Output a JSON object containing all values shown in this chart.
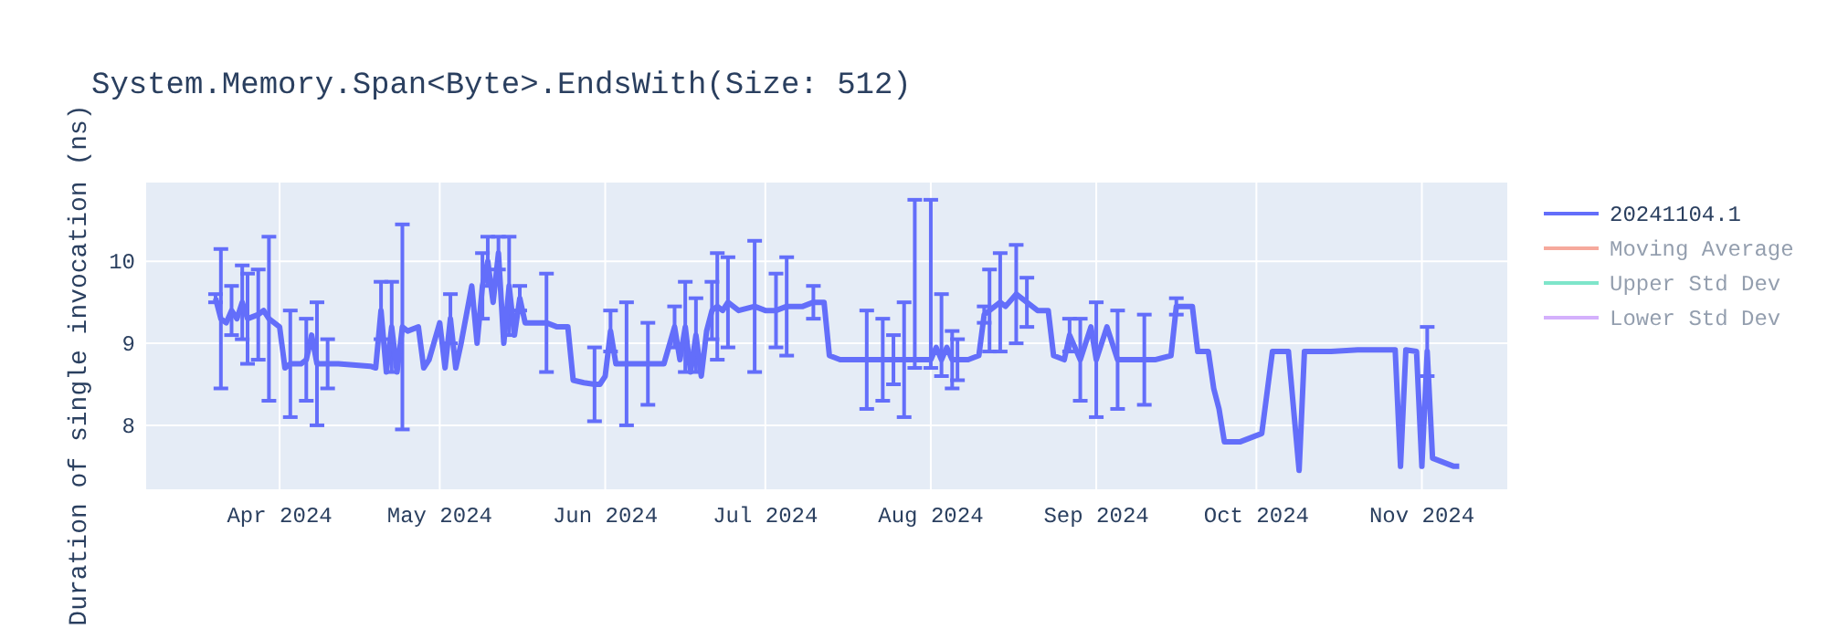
{
  "chart_data": {
    "type": "line",
    "title": "System.Memory.Span<Byte>.EndsWith(Size: 512)",
    "ylabel": "Duration of single invocation (ns)",
    "xlim": [
      "2024-03-07",
      "2024-11-17"
    ],
    "ylim": [
      7.22,
      10.96
    ],
    "xticks": [
      {
        "value": "2024-04-01",
        "label": "Apr 2024"
      },
      {
        "value": "2024-05-01",
        "label": "May 2024"
      },
      {
        "value": "2024-06-01",
        "label": "Jun 2024"
      },
      {
        "value": "2024-07-01",
        "label": "Jul 2024"
      },
      {
        "value": "2024-08-01",
        "label": "Aug 2024"
      },
      {
        "value": "2024-09-01",
        "label": "Sep 2024"
      },
      {
        "value": "2024-10-01",
        "label": "Oct 2024"
      },
      {
        "value": "2024-11-01",
        "label": "Nov 2024"
      }
    ],
    "yticks": [
      8,
      9,
      10
    ],
    "grid": true,
    "legend": "top right",
    "line_style": "solid",
    "marker": "none",
    "series": [
      {
        "name": "20241104.1",
        "color": "#636efa",
        "x": [
          "2024-03-20",
          "2024-03-21",
          "2024-03-22",
          "2024-03-23",
          "2024-03-24",
          "2024-03-25",
          "2024-03-26",
          "2024-03-28",
          "2024-03-29",
          "2024-03-30",
          "2024-04-01",
          "2024-04-02",
          "2024-04-03",
          "2024-04-05",
          "2024-04-06",
          "2024-04-07",
          "2024-04-08",
          "2024-04-10",
          "2024-04-12",
          "2024-04-18",
          "2024-04-19",
          "2024-04-20",
          "2024-04-21",
          "2024-04-22",
          "2024-04-23",
          "2024-04-24",
          "2024-04-25",
          "2024-04-27",
          "2024-04-28",
          "2024-04-29",
          "2024-05-01",
          "2024-05-02",
          "2024-05-03",
          "2024-05-04",
          "2024-05-05",
          "2024-05-07",
          "2024-05-08",
          "2024-05-09",
          "2024-05-10",
          "2024-05-11",
          "2024-05-12",
          "2024-05-13",
          "2024-05-14",
          "2024-05-15",
          "2024-05-16",
          "2024-05-17",
          "2024-05-20",
          "2024-05-21",
          "2024-05-23",
          "2024-05-25",
          "2024-05-26",
          "2024-05-28",
          "2024-05-30",
          "2024-05-31",
          "2024-06-01",
          "2024-06-02",
          "2024-06-03",
          "2024-06-05",
          "2024-06-07",
          "2024-06-09",
          "2024-06-12",
          "2024-06-14",
          "2024-06-15",
          "2024-06-16",
          "2024-06-17",
          "2024-06-18",
          "2024-06-19",
          "2024-06-20",
          "2024-06-21",
          "2024-06-22",
          "2024-06-23",
          "2024-06-24",
          "2024-06-26",
          "2024-06-29",
          "2024-07-01",
          "2024-07-03",
          "2024-07-05",
          "2024-07-08",
          "2024-07-10",
          "2024-07-12",
          "2024-07-13",
          "2024-07-15",
          "2024-07-20",
          "2024-07-23",
          "2024-07-25",
          "2024-07-27",
          "2024-07-29",
          "2024-08-01",
          "2024-08-02",
          "2024-08-03",
          "2024-08-04",
          "2024-08-05",
          "2024-08-06",
          "2024-08-08",
          "2024-08-10",
          "2024-08-11",
          "2024-08-12",
          "2024-08-14",
          "2024-08-15",
          "2024-08-17",
          "2024-08-19",
          "2024-08-21",
          "2024-08-23",
          "2024-08-24",
          "2024-08-26",
          "2024-08-27",
          "2024-08-29",
          "2024-08-31",
          "2024-09-01",
          "2024-09-03",
          "2024-09-05",
          "2024-09-08",
          "2024-09-10",
          "2024-09-12",
          "2024-09-15",
          "2024-09-16",
          "2024-09-19",
          "2024-09-20",
          "2024-09-22",
          "2024-09-23",
          "2024-09-24",
          "2024-09-25",
          "2024-09-28",
          "2024-09-30",
          "2024-10-02",
          "2024-10-04",
          "2024-10-07",
          "2024-10-09",
          "2024-10-10",
          "2024-10-15",
          "2024-10-20",
          "2024-10-27",
          "2024-10-28",
          "2024-10-29",
          "2024-10-31",
          "2024-11-01",
          "2024-11-02",
          "2024-11-03",
          "2024-11-05",
          "2024-11-07",
          "2024-11-08"
        ],
        "values": [
          9.55,
          9.3,
          9.25,
          9.4,
          9.3,
          9.5,
          9.3,
          9.35,
          9.4,
          9.3,
          9.2,
          8.7,
          8.75,
          8.75,
          8.8,
          9.1,
          8.75,
          8.75,
          8.75,
          8.72,
          8.7,
          9.4,
          8.65,
          9.2,
          8.65,
          9.2,
          9.15,
          9.2,
          8.7,
          8.8,
          9.25,
          8.7,
          9.3,
          8.7,
          9.0,
          9.7,
          9.0,
          9.7,
          10.0,
          9.5,
          10.1,
          9.0,
          9.7,
          9.1,
          9.55,
          9.25,
          9.25,
          9.25,
          9.2,
          9.2,
          8.55,
          8.52,
          8.5,
          8.5,
          8.6,
          9.15,
          8.75,
          8.75,
          8.75,
          8.75,
          8.75,
          9.2,
          8.8,
          9.2,
          8.65,
          9.1,
          8.6,
          9.15,
          9.4,
          9.45,
          9.4,
          9.5,
          9.4,
          9.45,
          9.4,
          9.4,
          9.45,
          9.45,
          9.5,
          9.5,
          8.85,
          8.8,
          8.8,
          8.8,
          8.8,
          8.8,
          8.8,
          8.8,
          8.95,
          8.8,
          8.95,
          8.8,
          8.8,
          8.8,
          8.85,
          9.35,
          9.4,
          9.5,
          9.45,
          9.6,
          9.5,
          9.4,
          9.4,
          8.85,
          8.8,
          9.1,
          8.8,
          9.2,
          8.8,
          9.2,
          8.8,
          8.8,
          8.8,
          8.8,
          8.85,
          9.45,
          9.45,
          8.9,
          8.9,
          8.45,
          8.2,
          7.8,
          7.8,
          7.85,
          7.9,
          8.9,
          8.9,
          7.45,
          8.9,
          8.9,
          8.92,
          8.92,
          7.5,
          8.92,
          8.9,
          7.5,
          8.9,
          7.6,
          7.55,
          7.5,
          7.5
        ],
        "errors": [
          0.05,
          0.85,
          null,
          0.3,
          null,
          0.45,
          0.55,
          0.55,
          null,
          1.0,
          null,
          null,
          0.65,
          null,
          0.5,
          null,
          0.75,
          0.3,
          null,
          null,
          null,
          0.35,
          null,
          0.55,
          null,
          1.25,
          null,
          null,
          null,
          null,
          null,
          null,
          0.3,
          null,
          null,
          null,
          null,
          0.4,
          0.3,
          null,
          0.2,
          null,
          0.6,
          null,
          0.15,
          null,
          null,
          0.6,
          null,
          null,
          null,
          null,
          0.45,
          null,
          null,
          0.25,
          null,
          0.75,
          null,
          0.5,
          null,
          0.25,
          null,
          0.55,
          null,
          0.45,
          null,
          null,
          0.35,
          0.65,
          null,
          0.55,
          null,
          0.8,
          null,
          0.45,
          0.6,
          null,
          0.2,
          null,
          null,
          null,
          0.6,
          0.5,
          0.3,
          0.7,
          [
            8.7,
            10.75
          ],
          [
            8.7,
            10.75
          ],
          null,
          [
            8.6,
            9.6
          ],
          null,
          0.35,
          0.25,
          null,
          null,
          0.1,
          0.5,
          0.6,
          null,
          0.6,
          0.3,
          null,
          null,
          null,
          null,
          0.2,
          0.5,
          null,
          0.7,
          null,
          0.6,
          null,
          0.55,
          null,
          null,
          0.1,
          null,
          null,
          null,
          null,
          null,
          null,
          null,
          null,
          null,
          null,
          null,
          null,
          null,
          null,
          null,
          null,
          null,
          null,
          null,
          null,
          0.3,
          null,
          null,
          null,
          null
        ]
      },
      {
        "name": "Moving Average",
        "color": "#ef553b"
      },
      {
        "name": "Upper Std Dev",
        "color": "#00cc96"
      },
      {
        "name": "Lower Std Dev",
        "color": "#ab63fa"
      }
    ]
  }
}
